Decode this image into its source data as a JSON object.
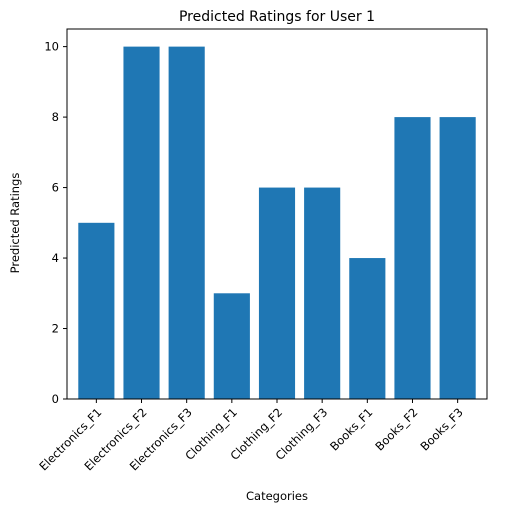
{
  "chart_data": {
    "type": "bar",
    "title": "Predicted Ratings for User 1",
    "xlabel": "Categories",
    "ylabel": "Predicted Ratings",
    "categories": [
      "Electronics_F1",
      "Electronics_F2",
      "Electronics_F3",
      "Clothing_F1",
      "Clothing_F2",
      "Clothing_F3",
      "Books_F1",
      "Books_F2",
      "Books_F3"
    ],
    "values": [
      5,
      10,
      10,
      3,
      6,
      6,
      4,
      8,
      8
    ],
    "ylim": [
      0,
      10.5
    ],
    "yticks": [
      0,
      2,
      4,
      6,
      8,
      10
    ],
    "grid": false,
    "legend": "none",
    "bar_color": "#1f77b4",
    "axis_color": "#000000"
  }
}
